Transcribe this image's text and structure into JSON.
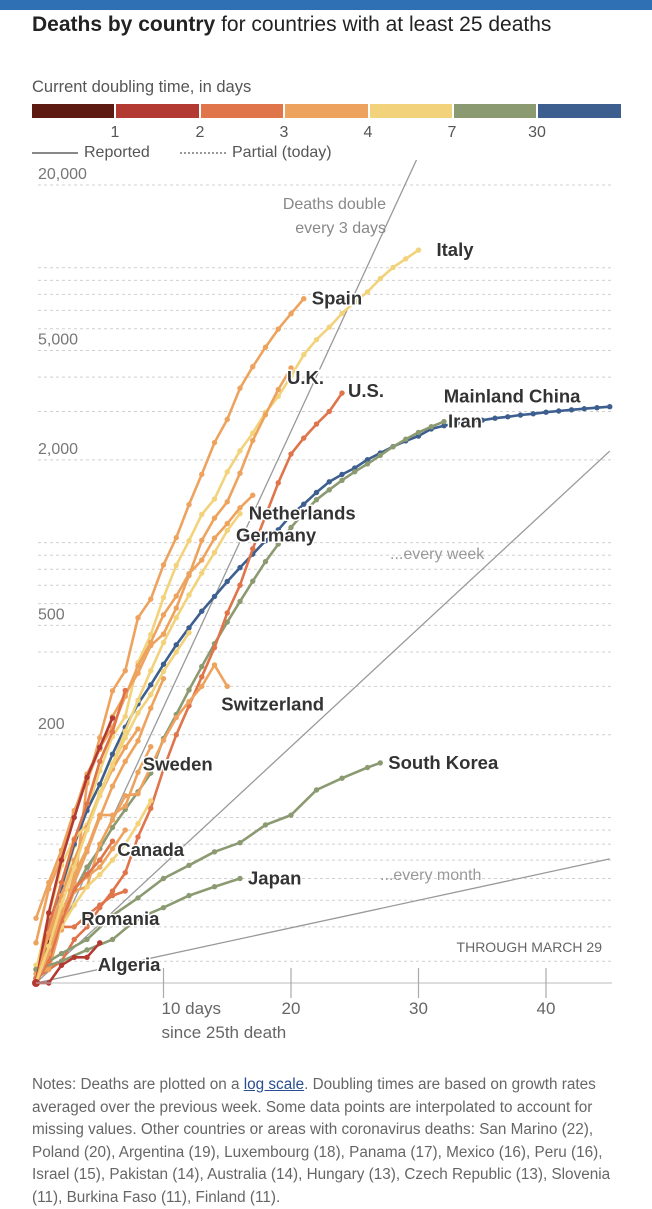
{
  "header": {
    "title_bold": "Deaths by country",
    "title_rest": "for countries with at least 25 deaths"
  },
  "legend": {
    "title": "Current doubling time, in days",
    "segments": [
      {
        "color": "#5c1a10"
      },
      {
        "color": "#b33a32"
      },
      {
        "color": "#e0744a"
      },
      {
        "color": "#eda35e"
      },
      {
        "color": "#f2d27a"
      },
      {
        "color": "#8c9a72"
      },
      {
        "color": "#3d5f8f"
      }
    ],
    "tick_labels": [
      "1",
      "2",
      "3",
      "4",
      "7",
      "30"
    ],
    "reported_label": "Reported",
    "partial_label": "Partial (today)"
  },
  "chart_data": {
    "type": "line",
    "y_scale": "log",
    "ylim": [
      25,
      22000
    ],
    "xlim": [
      0,
      45
    ],
    "y_tick_labels": [
      "20,000",
      "5,000",
      "2,000",
      "500",
      "200"
    ],
    "y_ticks": [
      20000,
      5000,
      2000,
      500,
      200
    ],
    "x_tick_labels": [
      "10 days",
      "20",
      "30",
      "40"
    ],
    "x_ticks": [
      10,
      20,
      30,
      40
    ],
    "xlabel": "since 25th death",
    "reference_lines": [
      {
        "label": "Deaths double every 3 days",
        "doubling_days": 3
      },
      {
        "label": "...every week",
        "doubling_days": 7
      },
      {
        "label": "...every month",
        "doubling_days": 30
      }
    ],
    "annotation": "THROUGH MARCH 29",
    "series": [
      {
        "name": "Italy",
        "color": "#f2d27a",
        "x": [
          0,
          1,
          2,
          3,
          4,
          5,
          6,
          7,
          8,
          9,
          10,
          11,
          12,
          13,
          14,
          15,
          16,
          17,
          18,
          19,
          20,
          21,
          22,
          23,
          24,
          25,
          26,
          27,
          28,
          29,
          30
        ],
        "y": [
          29,
          34,
          52,
          79,
          107,
          148,
          197,
          233,
          366,
          463,
          631,
          827,
          1016,
          1266,
          1441,
          1809,
          2158,
          2503,
          2978,
          3405,
          4032,
          4825,
          5476,
          6077,
          6820,
          7503,
          8165,
          9134,
          10023,
          10779,
          11591
        ]
      },
      {
        "name": "Spain",
        "color": "#eda35e",
        "x": [
          0,
          1,
          2,
          3,
          4,
          5,
          6,
          7,
          8,
          9,
          10,
          11,
          12,
          13,
          14,
          15,
          16,
          17,
          18,
          19,
          20,
          21
        ],
        "y": [
          28,
          35,
          54,
          55,
          133,
          195,
          289,
          342,
          533,
          623,
          830,
          1043,
          1375,
          1772,
          2311,
          2808,
          3647,
          4365,
          5138,
          5982,
          6803,
          7716
        ]
      },
      {
        "name": "Mainland China",
        "color": "#3d5f8f",
        "x": [
          0,
          1,
          2,
          3,
          4,
          5,
          6,
          7,
          8,
          9,
          10,
          11,
          12,
          13,
          14,
          15,
          16,
          17,
          18,
          19,
          20,
          21,
          22,
          23,
          24,
          25,
          26,
          27,
          28,
          29,
          30,
          31,
          32,
          33,
          34,
          35,
          36,
          37,
          38,
          39,
          40,
          41,
          42,
          43,
          44,
          45
        ],
        "y": [
          26,
          41,
          56,
          80,
          106,
          132,
          170,
          213,
          259,
          304,
          361,
          425,
          490,
          563,
          637,
          722,
          811,
          908,
          1016,
          1113,
          1259,
          1380,
          1523,
          1665,
          1770,
          1868,
          2004,
          2118,
          2236,
          2345,
          2442,
          2592,
          2663,
          2715,
          2744,
          2788,
          2835,
          2870,
          2912,
          2943,
          2981,
          3012,
          3042,
          3070,
          3097,
          3122
        ]
      },
      {
        "name": "Iran",
        "color": "#8c9a72",
        "x": [
          0,
          1,
          2,
          3,
          4,
          5,
          6,
          7,
          8,
          9,
          10,
          11,
          12,
          13,
          14,
          15,
          16,
          17,
          18,
          19,
          20,
          21,
          22,
          23,
          24,
          25,
          26,
          27,
          28,
          29,
          30,
          31,
          32
        ],
        "y": [
          26,
          34,
          43,
          54,
          66,
          77,
          92,
          107,
          124,
          145,
          194,
          237,
          291,
          354,
          429,
          514,
          611,
          724,
          853,
          988,
          1135,
          1284,
          1433,
          1556,
          1685,
          1812,
          1934,
          2077,
          2234,
          2378,
          2517,
          2640,
          2757
        ]
      },
      {
        "name": "U.S.",
        "color": "#e0744a",
        "x": [
          0,
          1,
          2,
          3,
          4,
          5,
          6,
          7,
          8,
          9,
          10,
          11,
          12,
          13,
          14,
          15,
          16,
          17,
          18,
          19,
          20,
          21,
          22,
          23,
          24
        ],
        "y": [
          26,
          28,
          30,
          36,
          40,
          47,
          54,
          63,
          85,
          108,
          150,
          200,
          255,
          325,
          415,
          555,
          700,
          950,
          1250,
          1650,
          2100,
          2400,
          2700,
          3000,
          3500
        ]
      },
      {
        "name": "U.K.",
        "color": "#eda35e",
        "x": [
          0,
          1,
          2,
          3,
          4,
          5,
          6,
          7,
          8,
          9,
          10,
          11,
          12,
          13,
          14,
          15,
          16,
          17,
          18,
          19,
          20
        ],
        "y": [
          35,
          55,
          71,
          104,
          144,
          177,
          233,
          281,
          335,
          422,
          465,
          578,
          759,
          1019,
          1228,
          1408,
          1789,
          2352,
          2921,
          3605,
          4320
        ]
      },
      {
        "name": "Netherlands",
        "color": "#eda35e",
        "x": [
          0,
          1,
          2,
          3,
          4,
          5,
          6,
          7,
          8,
          9,
          10,
          11,
          12,
          13,
          14,
          15,
          16,
          17
        ],
        "y": [
          43,
          58,
          76,
          106,
          136,
          179,
          213,
          276,
          356,
          434,
          546,
          639,
          771,
          864,
          1039,
          1173,
          1339,
          1487
        ]
      },
      {
        "name": "Germany",
        "color": "#f2d27a",
        "x": [
          0,
          1,
          2,
          3,
          4,
          5,
          6,
          7,
          8,
          9,
          10,
          11,
          12,
          13,
          14,
          15,
          16
        ],
        "y": [
          28,
          44,
          67,
          84,
          94,
          123,
          157,
          206,
          267,
          342,
          433,
          533,
          645,
          775,
          920,
          1107,
          1275
        ]
      },
      {
        "name": "Switzerland",
        "color": "#eda35e",
        "x": [
          0,
          1,
          2,
          3,
          4,
          5,
          6,
          7,
          8,
          9,
          10,
          11,
          12,
          13,
          14,
          15
        ],
        "y": [
          27,
          28,
          41,
          54,
          56,
          80,
          98,
          120,
          122,
          153,
          191,
          231,
          264,
          300,
          359,
          300
        ]
      },
      {
        "name": "South Korea",
        "color": "#8c9a72",
        "x": [
          0,
          2,
          4,
          6,
          8,
          10,
          12,
          14,
          16,
          18,
          20,
          22,
          24,
          26,
          27
        ],
        "y": [
          28,
          32,
          36,
          44,
          51,
          60,
          67,
          75,
          81,
          94,
          102,
          126,
          139,
          152,
          158
        ]
      },
      {
        "name": "Japan",
        "color": "#8c9a72",
        "x": [
          0,
          2,
          4,
          6,
          8,
          10,
          12,
          14,
          16
        ],
        "y": [
          28,
          30,
          33,
          36,
          43,
          47,
          52,
          56,
          60
        ]
      },
      {
        "name": "Sweden",
        "color": "#eda35e",
        "x": [
          0,
          1,
          2,
          3,
          4,
          5,
          6,
          7,
          8,
          9
        ],
        "y": [
          25,
          33,
          42,
          62,
          77,
          102,
          102,
          110,
          146,
          181
        ]
      },
      {
        "name": "Canada",
        "color": "#eda35e",
        "x": [
          0,
          1,
          2,
          3,
          4,
          5,
          6,
          7
        ],
        "y": [
          25,
          38,
          39,
          55,
          61,
          66,
          77,
          90
        ]
      },
      {
        "name": "Romania",
        "color": "#e0744a",
        "x": [
          0,
          1,
          2,
          3,
          4,
          5,
          6,
          7
        ],
        "y": [
          26,
          37,
          40,
          40,
          44,
          48,
          52,
          54
        ]
      },
      {
        "name": "Algeria",
        "color": "#b33a32",
        "x": [
          0,
          1,
          2,
          3,
          4,
          5
        ],
        "y": [
          25,
          25,
          29,
          31,
          31,
          35
        ]
      },
      {
        "name": "",
        "color": "#5c1a10",
        "x": [
          0,
          1
        ],
        "y": [
          25,
          35
        ]
      },
      {
        "name": "",
        "color": "#e0744a",
        "x": [
          0,
          1,
          2,
          3,
          4,
          5,
          6,
          7
        ],
        "y": [
          25,
          40,
          58,
          83,
          112,
          160,
          205,
          290
        ]
      },
      {
        "name": "",
        "color": "#b33a32",
        "x": [
          0,
          1,
          2,
          3,
          4,
          5,
          6
        ],
        "y": [
          25,
          45,
          70,
          100,
          140,
          180,
          230
        ]
      },
      {
        "name": "",
        "color": "#eda35e",
        "x": [
          0,
          1,
          2,
          3,
          4,
          5,
          6,
          7,
          8
        ],
        "y": [
          25,
          38,
          52,
          70,
          92,
          120,
          150,
          180,
          210
        ]
      },
      {
        "name": "",
        "color": "#f2d27a",
        "x": [
          0,
          1,
          2,
          3,
          4,
          5,
          6,
          7,
          8,
          9
        ],
        "y": [
          25,
          32,
          40,
          48,
          56,
          62,
          70,
          80,
          95,
          115
        ]
      },
      {
        "name": "",
        "color": "#e0744a",
        "x": [
          0,
          1,
          2,
          3,
          4,
          5,
          6
        ],
        "y": [
          25,
          30,
          42,
          55,
          62,
          70,
          82
        ]
      },
      {
        "name": "",
        "color": "#eda35e",
        "x": [
          0,
          1,
          2,
          3,
          4,
          5,
          6,
          7,
          8,
          9,
          10
        ],
        "y": [
          25,
          32,
          45,
          58,
          75,
          100,
          130,
          160,
          190,
          250,
          320
        ]
      },
      {
        "name": "",
        "color": "#f2d27a",
        "x": [
          0,
          1,
          2,
          3,
          4,
          5,
          6,
          7,
          8,
          9,
          10,
          11,
          12
        ],
        "y": [
          25,
          34,
          48,
          66,
          90,
          120,
          155,
          195,
          240,
          280,
          340,
          400,
          470
        ]
      }
    ]
  },
  "notes": {
    "prefix": "Notes: Deaths are plotted on a",
    "link": "log scale",
    "text": ". Doubling times are based on growth rates averaged over the previous week. Some data points are interpolated to account for missing values. Other countries or areas with coronavirus deaths: San Marino (22), Poland (20), Argentina (19), Luxembourg (18), Panama (17), Mexico (16), Peru (16), Israel (15), Pakistan (14), Australia (14), Hungary (13), Czech Republic (13), Slovenia (11), Burkina Faso (11), Finland (11)."
  }
}
